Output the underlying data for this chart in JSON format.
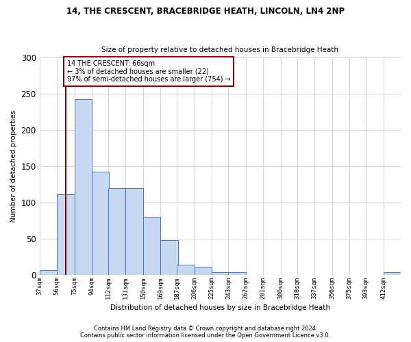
{
  "title1": "14, THE CRESCENT, BRACEBRIDGE HEATH, LINCOLN, LN4 2NP",
  "title2": "Size of property relative to detached houses in Bracebridge Heath",
  "xlabel": "Distribution of detached houses by size in Bracebridge Heath",
  "ylabel": "Number of detached properties",
  "footnote1": "Contains HM Land Registry data © Crown copyright and database right 2024.",
  "footnote2": "Contains public sector information licensed under the Open Government Licence v3.0.",
  "annotation_title": "14 THE CRESCENT: 66sqm",
  "annotation_line1": "← 3% of detached houses are smaller (22)",
  "annotation_line2": "97% of semi-detached houses are larger (754) →",
  "bar_color": "#c6d9f0",
  "bar_edge_color": "#4472c4",
  "vline_color": "#8b0000",
  "vline_x": 66,
  "bin_edges": [
    37,
    56,
    75,
    94,
    112,
    131,
    150,
    169,
    187,
    206,
    225,
    243,
    262,
    281,
    300,
    318,
    337,
    356,
    375,
    393,
    412,
    431
  ],
  "values": [
    6,
    111,
    243,
    142,
    120,
    120,
    80,
    48,
    14,
    11,
    3,
    3,
    0,
    0,
    0,
    0,
    0,
    0,
    0,
    0,
    3
  ],
  "tick_labels": [
    "37sqm",
    "56sqm",
    "75sqm",
    "94sqm",
    "112sqm",
    "131sqm",
    "150sqm",
    "169sqm",
    "187sqm",
    "206sqm",
    "225sqm",
    "243sqm",
    "262sqm",
    "281sqm",
    "300sqm",
    "318sqm",
    "337sqm",
    "356sqm",
    "375sqm",
    "393sqm",
    "412sqm"
  ],
  "ylim": [
    0,
    300
  ],
  "yticks": [
    0,
    50,
    100,
    150,
    200,
    250,
    300
  ],
  "background_color": "#ffffff",
  "grid_color": "#d0d0d0",
  "fig_width": 6.0,
  "fig_height": 5.0,
  "dpi": 100
}
